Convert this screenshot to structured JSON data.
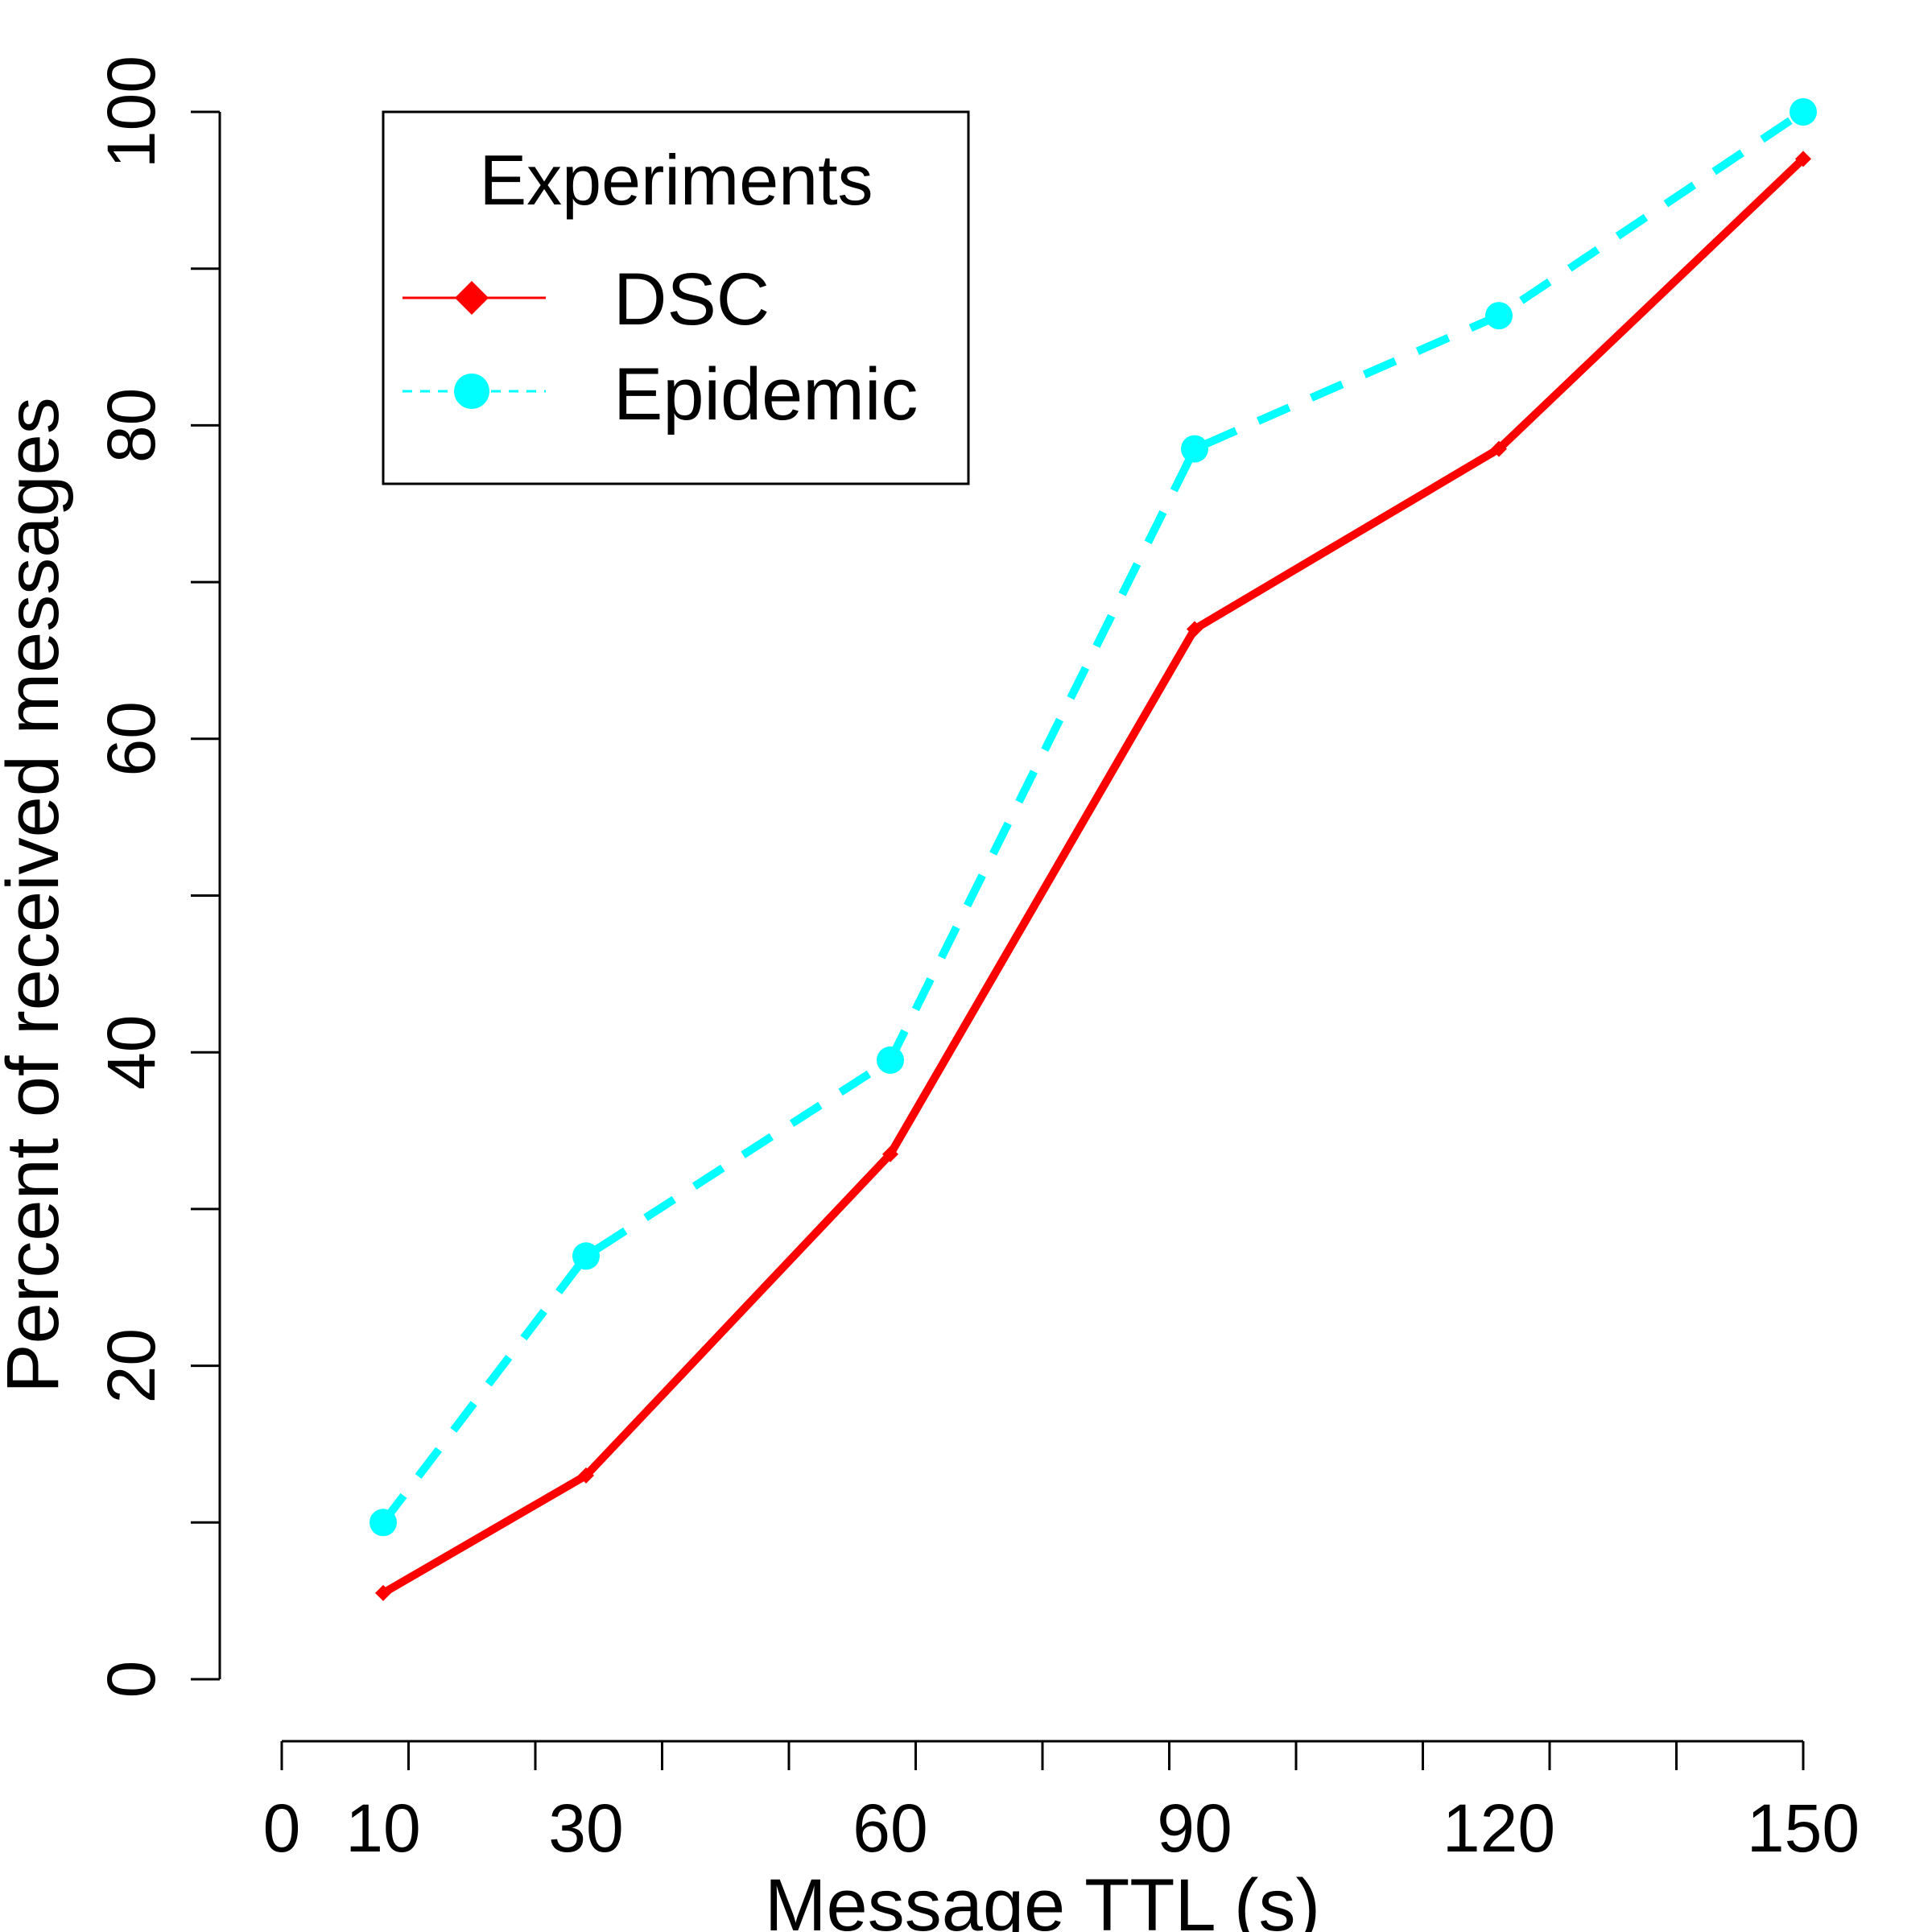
{
  "chart_data": {
    "type": "line",
    "title": "",
    "xlabel": "Message TTL (s)",
    "ylabel": "Percent of received messages",
    "x": [
      10,
      30,
      60,
      90,
      120,
      150
    ],
    "xticks": [
      0,
      10,
      30,
      60,
      90,
      120,
      150
    ],
    "xlim": [
      0,
      150
    ],
    "yticks": [
      0,
      20,
      40,
      60,
      80,
      100
    ],
    "ylim": [
      0,
      100
    ],
    "grid": false,
    "legend": {
      "title": "Experiments",
      "position": "top-left"
    },
    "series": [
      {
        "name": "DSC",
        "color": "#ff0000",
        "line_style": "solid",
        "marker": "diamond",
        "values": [
          5.5,
          13,
          33.5,
          67,
          78.5,
          97
        ]
      },
      {
        "name": "Epidemic",
        "color": "#00ffff",
        "line_style": "dashed",
        "marker": "circle",
        "values": [
          10,
          27,
          39.5,
          78.5,
          87,
          100
        ]
      }
    ]
  }
}
